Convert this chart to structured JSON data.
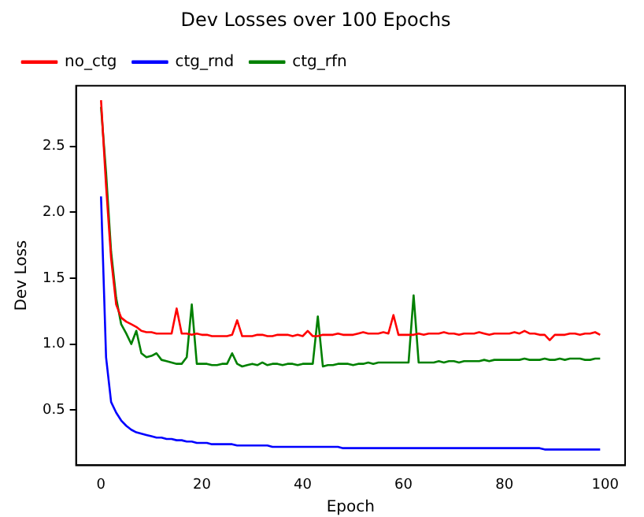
{
  "chart_data": {
    "type": "line",
    "title": "Dev Losses over 100 Epochs",
    "xlabel": "Epoch",
    "ylabel": "Dev Loss",
    "x": [
      0,
      1,
      2,
      3,
      4,
      5,
      6,
      7,
      8,
      9,
      10,
      11,
      12,
      13,
      14,
      15,
      16,
      17,
      18,
      19,
      20,
      21,
      22,
      23,
      24,
      25,
      26,
      27,
      28,
      29,
      30,
      31,
      32,
      33,
      34,
      35,
      36,
      37,
      38,
      39,
      40,
      41,
      42,
      43,
      44,
      45,
      46,
      47,
      48,
      49,
      50,
      51,
      52,
      53,
      54,
      55,
      56,
      57,
      58,
      59,
      60,
      61,
      62,
      63,
      64,
      65,
      66,
      67,
      68,
      69,
      70,
      71,
      72,
      73,
      74,
      75,
      76,
      77,
      78,
      79,
      80,
      81,
      82,
      83,
      84,
      85,
      86,
      87,
      88,
      89,
      90,
      91,
      92,
      93,
      94,
      95,
      96,
      97,
      98,
      99
    ],
    "series": [
      {
        "name": "no_ctg",
        "color": "#ff0000",
        "values": [
          2.85,
          2.2,
          1.65,
          1.3,
          1.2,
          1.17,
          1.15,
          1.13,
          1.1,
          1.09,
          1.09,
          1.08,
          1.08,
          1.08,
          1.08,
          1.27,
          1.08,
          1.08,
          1.07,
          1.08,
          1.07,
          1.07,
          1.06,
          1.06,
          1.06,
          1.06,
          1.07,
          1.18,
          1.06,
          1.06,
          1.06,
          1.07,
          1.07,
          1.06,
          1.06,
          1.07,
          1.07,
          1.07,
          1.06,
          1.07,
          1.06,
          1.1,
          1.06,
          1.06,
          1.07,
          1.07,
          1.07,
          1.08,
          1.07,
          1.07,
          1.07,
          1.08,
          1.09,
          1.08,
          1.08,
          1.08,
          1.09,
          1.08,
          1.22,
          1.07,
          1.07,
          1.07,
          1.07,
          1.08,
          1.07,
          1.08,
          1.08,
          1.08,
          1.09,
          1.08,
          1.08,
          1.07,
          1.08,
          1.08,
          1.08,
          1.09,
          1.08,
          1.07,
          1.08,
          1.08,
          1.08,
          1.08,
          1.09,
          1.08,
          1.1,
          1.08,
          1.08,
          1.07,
          1.07,
          1.03,
          1.07,
          1.07,
          1.07,
          1.08,
          1.08,
          1.07,
          1.08,
          1.08,
          1.09,
          1.07
        ]
      },
      {
        "name": "ctg_rnd",
        "color": "#0000ff",
        "values": [
          2.12,
          0.9,
          0.56,
          0.48,
          0.42,
          0.38,
          0.35,
          0.33,
          0.32,
          0.31,
          0.3,
          0.29,
          0.29,
          0.28,
          0.28,
          0.27,
          0.27,
          0.26,
          0.26,
          0.25,
          0.25,
          0.25,
          0.24,
          0.24,
          0.24,
          0.24,
          0.24,
          0.23,
          0.23,
          0.23,
          0.23,
          0.23,
          0.23,
          0.23,
          0.22,
          0.22,
          0.22,
          0.22,
          0.22,
          0.22,
          0.22,
          0.22,
          0.22,
          0.22,
          0.22,
          0.22,
          0.22,
          0.22,
          0.21,
          0.21,
          0.21,
          0.21,
          0.21,
          0.21,
          0.21,
          0.21,
          0.21,
          0.21,
          0.21,
          0.21,
          0.21,
          0.21,
          0.21,
          0.21,
          0.21,
          0.21,
          0.21,
          0.21,
          0.21,
          0.21,
          0.21,
          0.21,
          0.21,
          0.21,
          0.21,
          0.21,
          0.21,
          0.21,
          0.21,
          0.21,
          0.21,
          0.21,
          0.21,
          0.21,
          0.21,
          0.21,
          0.21,
          0.21,
          0.2,
          0.2,
          0.2,
          0.2,
          0.2,
          0.2,
          0.2,
          0.2,
          0.2,
          0.2,
          0.2,
          0.2
        ]
      },
      {
        "name": "ctg_rfn",
        "color": "#008000",
        "values": [
          2.8,
          2.3,
          1.7,
          1.35,
          1.15,
          1.08,
          1.0,
          1.1,
          0.93,
          0.9,
          0.91,
          0.93,
          0.88,
          0.87,
          0.86,
          0.85,
          0.85,
          0.9,
          1.3,
          0.85,
          0.85,
          0.85,
          0.84,
          0.84,
          0.85,
          0.85,
          0.93,
          0.85,
          0.83,
          0.84,
          0.85,
          0.84,
          0.86,
          0.84,
          0.85,
          0.85,
          0.84,
          0.85,
          0.85,
          0.84,
          0.85,
          0.85,
          0.85,
          1.21,
          0.83,
          0.84,
          0.84,
          0.85,
          0.85,
          0.85,
          0.84,
          0.85,
          0.85,
          0.86,
          0.85,
          0.86,
          0.86,
          0.86,
          0.86,
          0.86,
          0.86,
          0.86,
          1.37,
          0.86,
          0.86,
          0.86,
          0.86,
          0.87,
          0.86,
          0.87,
          0.87,
          0.86,
          0.87,
          0.87,
          0.87,
          0.87,
          0.88,
          0.87,
          0.88,
          0.88,
          0.88,
          0.88,
          0.88,
          0.88,
          0.89,
          0.88,
          0.88,
          0.88,
          0.89,
          0.88,
          0.88,
          0.89,
          0.88,
          0.89,
          0.89,
          0.89,
          0.88,
          0.88,
          0.89,
          0.89
        ]
      }
    ],
    "xlim": [
      -4.95,
      103.95
    ],
    "ylim": [
      0.08,
      2.96
    ],
    "xticks": [
      0,
      20,
      40,
      60,
      80,
      100
    ],
    "yticks": [
      0.5,
      {
        "value": 1,
        "label": "1.0"
      },
      1.5,
      {
        "value": 2,
        "label": "2.0"
      },
      2.5
    ],
    "legend": "top left",
    "grid": false,
    "marker": "none",
    "line_style": "solid"
  }
}
